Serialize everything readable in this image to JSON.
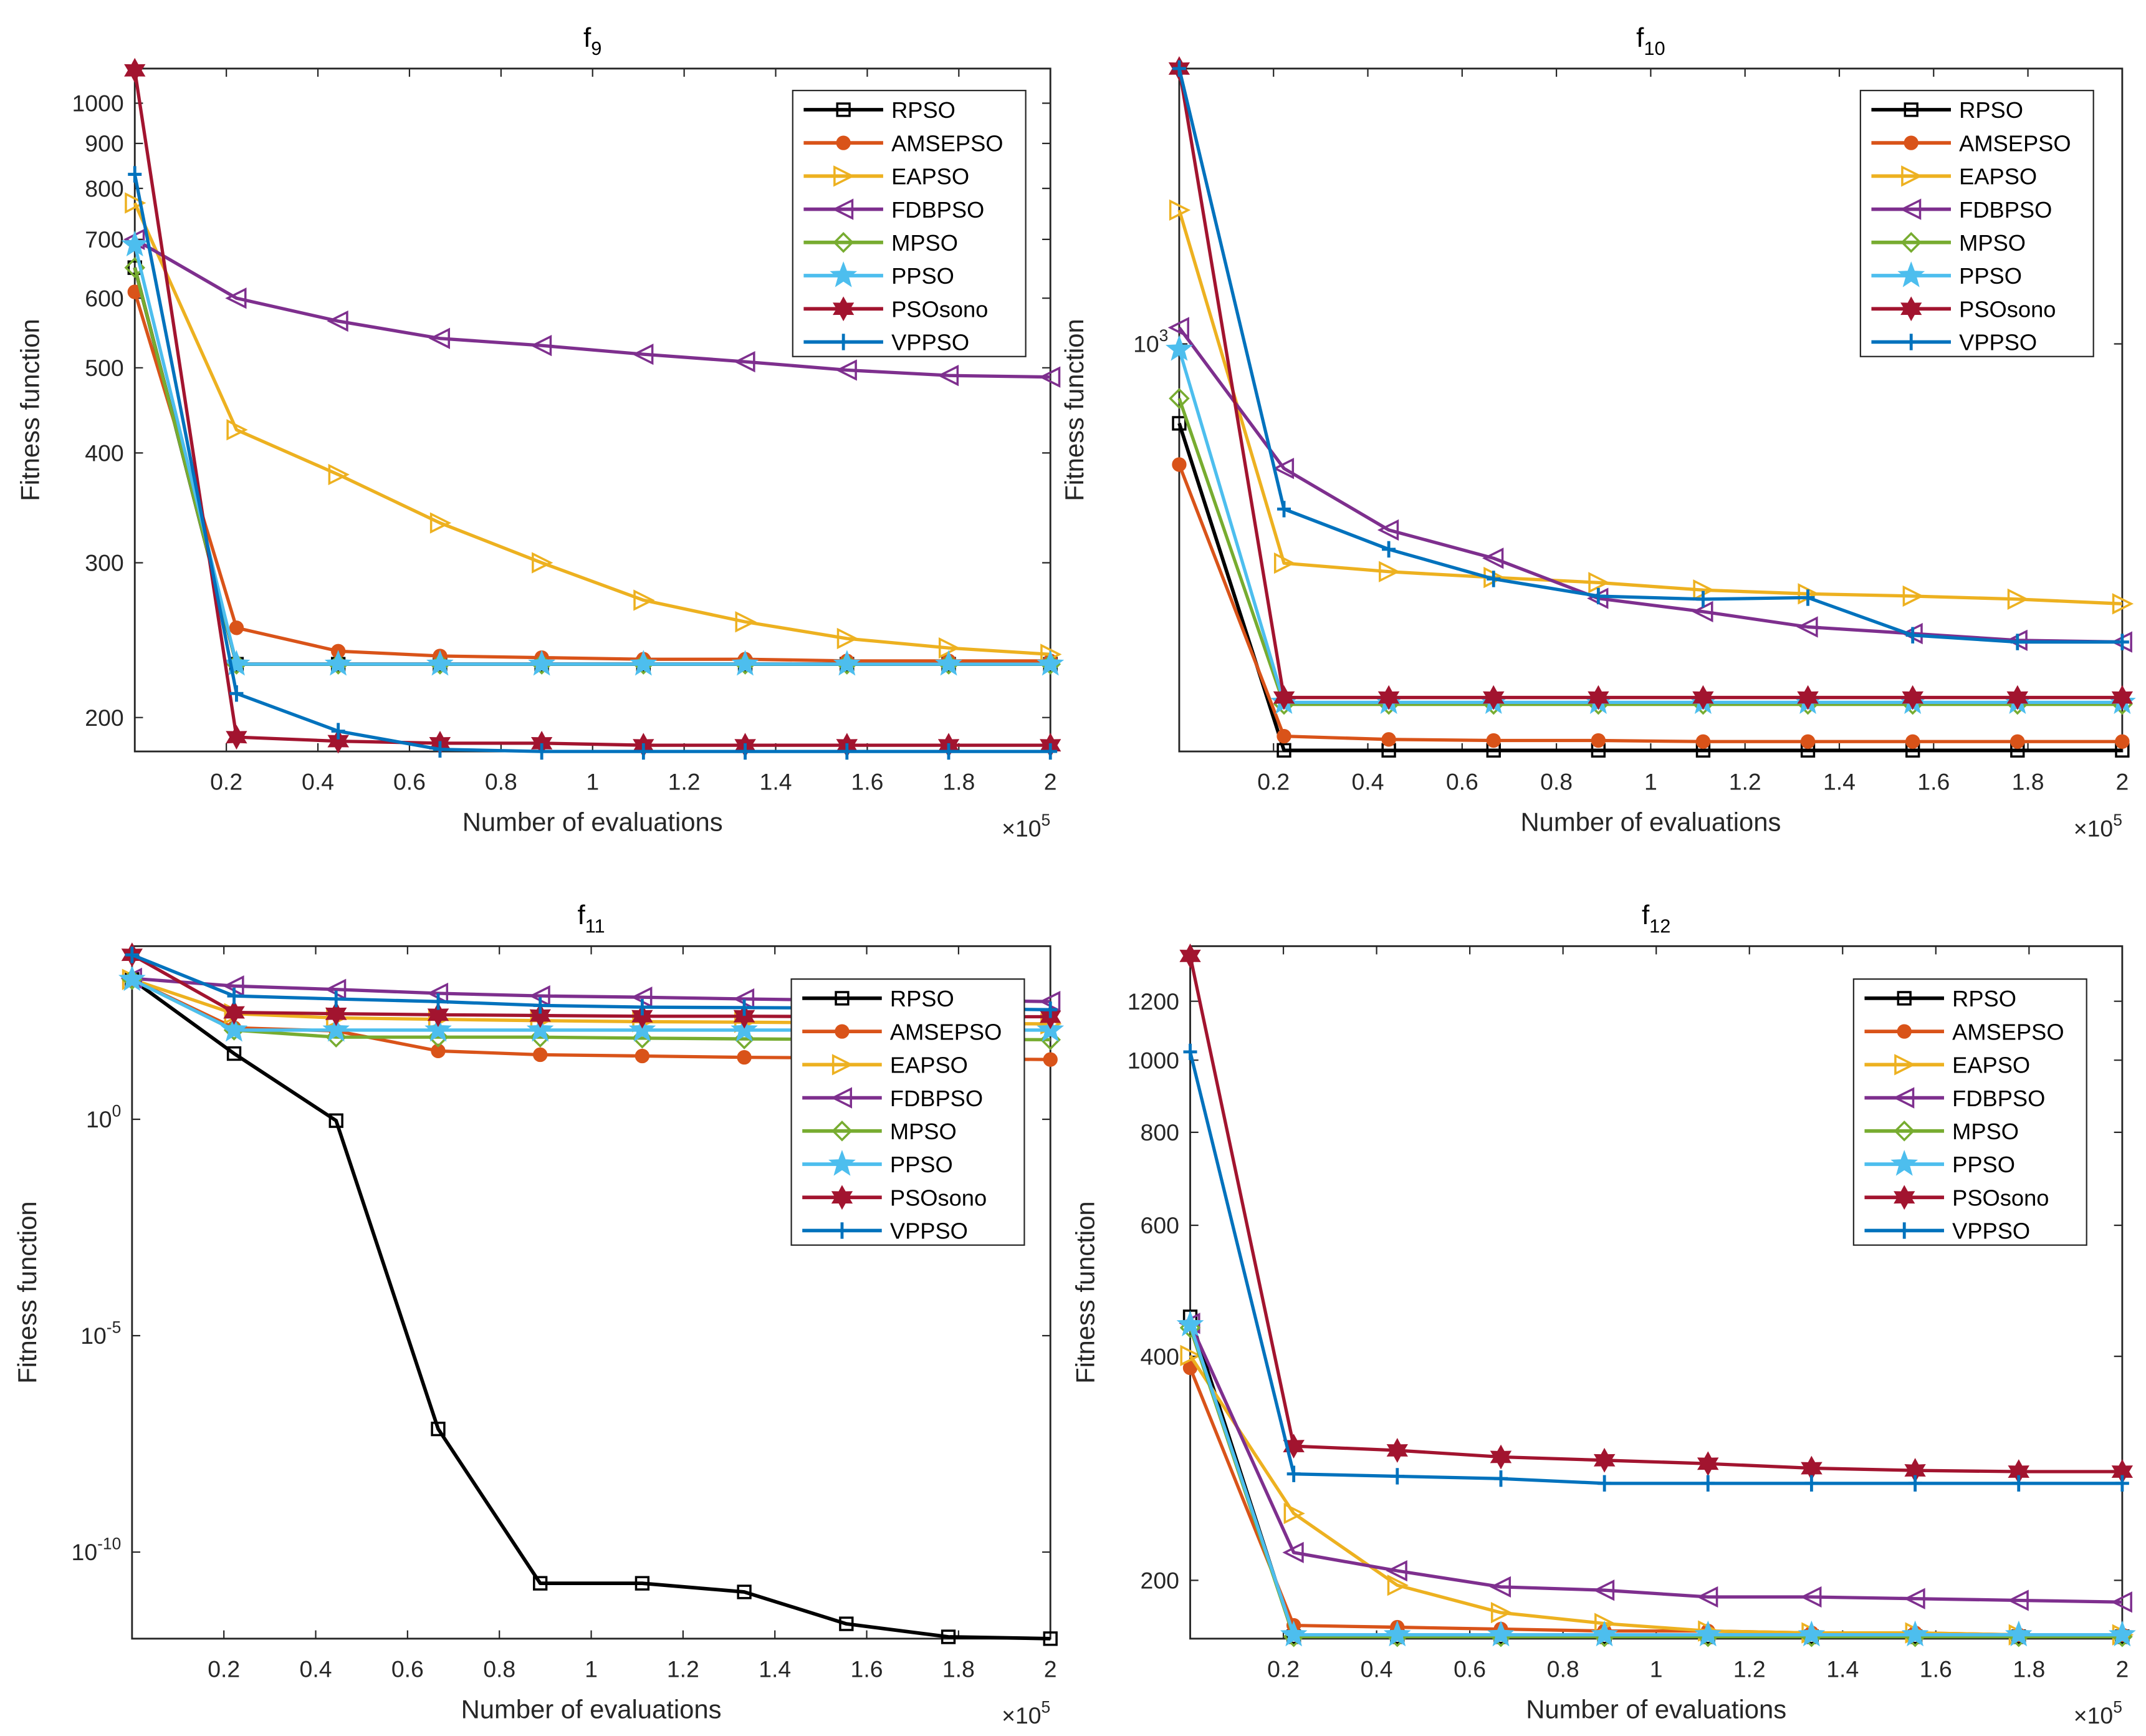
{
  "legend_names": [
    "RPSO",
    "AMSEPSO",
    "EAPSO",
    "FDBPSO",
    "MPSO",
    "PPSO",
    "PSOsono",
    "VPPSO"
  ],
  "colors": [
    "#000000",
    "#D95319",
    "#EDB120",
    "#7E2F8E",
    "#77AC30",
    "#4DBEEE",
    "#A2142F",
    "#0072BD"
  ],
  "markers": [
    "square",
    "circle",
    "triangle-right",
    "triangle-left",
    "diamond",
    "pentagram",
    "hexagram",
    "plus"
  ],
  "chart_data": [
    {
      "type": "line",
      "title": {
        "base": "f",
        "sub": "9"
      },
      "xlabel": "Number of evaluations",
      "ylabel": "Fitness function",
      "x_multiplier": {
        "prefix": "×10",
        "exp": "5"
      },
      "xscale": "linear",
      "yscale": "log",
      "xlim": [
        0,
        2
      ],
      "ylim": [
        183,
        1095
      ],
      "xticks": [
        "0.2",
        "0.4",
        "0.6",
        "0.8",
        "1",
        "1.2",
        "1.4",
        "1.6",
        "1.8",
        "2"
      ],
      "yticks": [
        {
          "v": 200,
          "label": "200"
        },
        {
          "v": 300,
          "label": "300"
        },
        {
          "v": 400,
          "label": "400"
        },
        {
          "v": 500,
          "label": "500"
        },
        {
          "v": 600,
          "label": "600"
        },
        {
          "v": 700,
          "label": "700"
        },
        {
          "v": 800,
          "label": "800"
        },
        {
          "v": 900,
          "label": "900"
        },
        {
          "v": 1000,
          "label": "1000"
        }
      ],
      "legend_position": "top-right",
      "x": [
        0,
        0.2222,
        0.4444,
        0.6667,
        0.8889,
        1.1111,
        1.3333,
        1.5556,
        1.7778,
        2.0
      ],
      "series": [
        {
          "name": "RPSO",
          "values": [
            650,
            230,
            230,
            230,
            230,
            230,
            230,
            230,
            230,
            230
          ]
        },
        {
          "name": "AMSEPSO",
          "values": [
            610,
            253,
            238,
            235,
            234,
            233,
            233,
            232,
            232,
            232
          ]
        },
        {
          "name": "EAPSO",
          "values": [
            770,
            425,
            378,
            333,
            300,
            272,
            257,
            246,
            240,
            236
          ]
        },
        {
          "name": "FDBPSO",
          "values": [
            700,
            600,
            565,
            540,
            530,
            518,
            508,
            497,
            490,
            488
          ]
        },
        {
          "name": "MPSO",
          "values": [
            650,
            230,
            230,
            230,
            230,
            230,
            230,
            230,
            230,
            230
          ]
        },
        {
          "name": "PPSO",
          "values": [
            690,
            230,
            230,
            230,
            230,
            230,
            230,
            230,
            230,
            230
          ]
        },
        {
          "name": "PSOsono",
          "values": [
            1090,
            190,
            188,
            187,
            187,
            186,
            186,
            186,
            186,
            186
          ]
        },
        {
          "name": "VPPSO",
          "values": [
            830,
            213,
            193,
            184,
            183,
            183,
            183,
            183,
            183,
            183
          ]
        }
      ]
    },
    {
      "type": "line",
      "title": {
        "base": "f",
        "sub": "10"
      },
      "xlabel": "Number of evaluations",
      "ylabel": "Fitness function",
      "x_multiplier": {
        "prefix": "×10",
        "exp": "5"
      },
      "xscale": "linear",
      "yscale": "log",
      "xlim": [
        0,
        2
      ],
      "ylim": [
        375,
        1940
      ],
      "xticks": [
        "0.2",
        "0.4",
        "0.6",
        "0.8",
        "1",
        "1.2",
        "1.4",
        "1.6",
        "1.8",
        "2"
      ],
      "yticks": [
        {
          "v": 1000,
          "label": "10",
          "exp": "3"
        }
      ],
      "legend_position": "top-right",
      "x": [
        0,
        0.2222,
        0.4444,
        0.6667,
        0.8889,
        1.1111,
        1.3333,
        1.5556,
        1.7778,
        2.0
      ],
      "series": [
        {
          "name": "RPSO",
          "values": [
            826,
            376,
            376,
            376,
            376,
            376,
            376,
            376,
            376,
            376
          ]
        },
        {
          "name": "AMSEPSO",
          "values": [
            748,
            389,
            386,
            385,
            385,
            384,
            384,
            384,
            384,
            384
          ]
        },
        {
          "name": "EAPSO",
          "values": [
            1380,
            590,
            578,
            570,
            563,
            553,
            548,
            545,
            541,
            535
          ]
        },
        {
          "name": "FDBPSO",
          "values": [
            1040,
            741,
            639,
            597,
            542,
            525,
            506,
            498,
            490,
            488
          ]
        },
        {
          "name": "MPSO",
          "values": [
            877,
            420,
            420,
            420,
            420,
            420,
            420,
            420,
            420,
            420
          ]
        },
        {
          "name": "PPSO",
          "values": [
            987,
            422,
            422,
            422,
            422,
            422,
            422,
            422,
            422,
            422
          ]
        },
        {
          "name": "PSOsono",
          "values": [
            1940,
            427,
            427,
            427,
            427,
            427,
            427,
            427,
            427,
            427
          ]
        },
        {
          "name": "VPPSO",
          "values": [
            1940,
            672,
            610,
            568,
            545,
            541,
            543,
            496,
            488,
            488
          ]
        }
      ]
    },
    {
      "type": "line",
      "title": {
        "base": "f",
        "sub": "11"
      },
      "xlabel": "Number of evaluations",
      "ylabel": "Fitness function",
      "x_multiplier": {
        "prefix": "×10",
        "exp": "5"
      },
      "xscale": "linear",
      "yscale": "log",
      "xlim": [
        0,
        2
      ],
      "ylim": [
        1e-12,
        10000.0
      ],
      "xticks": [
        "0.2",
        "0.4",
        "0.6",
        "0.8",
        "1",
        "1.2",
        "1.4",
        "1.6",
        "1.8",
        "2"
      ],
      "yticks": [
        {
          "v": 1e-10,
          "label": "10",
          "exp": "-10"
        },
        {
          "v": 1e-05,
          "label": "10",
          "exp": "-5"
        },
        {
          "v": 1,
          "label": "10",
          "exp": "0"
        }
      ],
      "legend_position": "top-right",
      "x": [
        0,
        0.2222,
        0.4444,
        0.6667,
        0.8889,
        1.1111,
        1.3333,
        1.5556,
        1.7778,
        2.0
      ],
      "series": [
        {
          "name": "RPSO",
          "values": [
            1700,
            33,
            0.93,
            7e-08,
            1.9e-11,
            1.9e-11,
            1.2e-11,
            2.2e-12,
            1.1e-12,
            1e-12
          ]
        },
        {
          "name": "AMSEPSO",
          "values": [
            1700,
            130,
            110,
            38,
            31,
            29,
            27,
            26,
            25,
            24
          ]
        },
        {
          "name": "EAPSO",
          "values": [
            1700,
            275,
            220,
            204,
            190,
            180,
            175,
            170,
            165,
            160
          ]
        },
        {
          "name": "FDBPSO",
          "values": [
            1800,
            1200,
            1000,
            813,
            708,
            661,
            603,
            562,
            560,
            525
          ]
        },
        {
          "name": "MPSO",
          "values": [
            1700,
            115,
            79,
            79,
            79,
            75,
            72,
            70,
            70,
            69
          ]
        },
        {
          "name": "PPSO",
          "values": [
            1700,
            115,
            115,
            115,
            115,
            115,
            115,
            115,
            115,
            115
          ]
        },
        {
          "name": "PSOsono",
          "values": [
            6300,
            295,
            275,
            260,
            250,
            240,
            240,
            235,
            235,
            234
          ]
        },
        {
          "name": "VPPSO",
          "values": [
            6300,
            708,
            603,
            525,
            427,
            390,
            380,
            370,
            360,
            340
          ]
        }
      ]
    },
    {
      "type": "line",
      "title": {
        "base": "f",
        "sub": "12"
      },
      "xlabel": "Number of evaluations",
      "ylabel": "Fitness function",
      "x_multiplier": {
        "prefix": "×10",
        "exp": "5"
      },
      "xscale": "linear",
      "yscale": "log",
      "xlim": [
        0,
        2
      ],
      "ylim": [
        167,
        1423
      ],
      "xticks": [
        "0.2",
        "0.4",
        "0.6",
        "0.8",
        "1",
        "1.2",
        "1.4",
        "1.6",
        "1.8",
        "2"
      ],
      "yticks": [
        {
          "v": 200,
          "label": "200"
        },
        {
          "v": 400,
          "label": "400"
        },
        {
          "v": 600,
          "label": "600"
        },
        {
          "v": 800,
          "label": "800"
        },
        {
          "v": 1000,
          "label": "1000"
        },
        {
          "v": 1200,
          "label": "1200"
        }
      ],
      "legend_position": "top-right",
      "x": [
        0,
        0.2222,
        0.4444,
        0.6667,
        0.8889,
        1.1111,
        1.3333,
        1.5556,
        1.7778,
        2.0
      ],
      "series": [
        {
          "name": "RPSO",
          "values": [
            452,
            168,
            168,
            168,
            168,
            168,
            168,
            168,
            168,
            168
          ]
        },
        {
          "name": "AMSEPSO",
          "values": [
            386,
            174,
            173,
            172,
            171,
            171,
            170,
            170,
            169,
            169
          ]
        },
        {
          "name": "EAPSO",
          "values": [
            401,
            246,
            197,
            181,
            175,
            171,
            170,
            170,
            169,
            169
          ]
        },
        {
          "name": "FDBPSO",
          "values": [
            443,
            218,
            206,
            196,
            194,
            190,
            190,
            189,
            188,
            187
          ]
        },
        {
          "name": "MPSO",
          "values": [
            437,
            168,
            168,
            168,
            168,
            168,
            168,
            168,
            168,
            168
          ]
        },
        {
          "name": "PPSO",
          "values": [
            441,
            169,
            169,
            169,
            169,
            169,
            169,
            169,
            169,
            169
          ]
        },
        {
          "name": "PSOsono",
          "values": [
            1381,
            303,
            299,
            293,
            290,
            287,
            283,
            281,
            280,
            280
          ]
        },
        {
          "name": "VPPSO",
          "values": [
            1026,
            278,
            276,
            274,
            270,
            270,
            270,
            270,
            270,
            270
          ]
        }
      ]
    }
  ]
}
